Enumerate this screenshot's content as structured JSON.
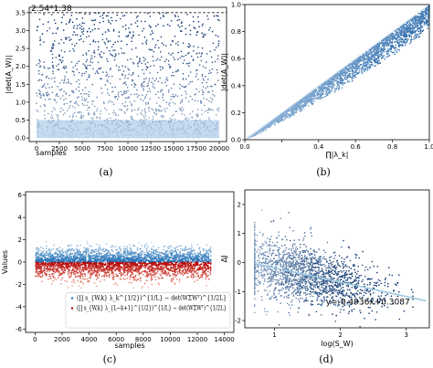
{
  "chart_data": [
    {
      "type": "scatter",
      "panel_label": "(a)",
      "xlabel": "samples",
      "ylabel": "|det(A_W)|",
      "xlim": [
        -800,
        20800
      ],
      "ylim": [
        -0.1,
        3.65
      ],
      "xticks": [
        0,
        2500,
        5000,
        7500,
        10000,
        12500,
        15000,
        17500,
        20000
      ],
      "xtick_labels": [
        "0",
        "2500",
        "5000",
        "7500",
        "10000",
        "12500",
        "15000",
        "17500",
        "20000"
      ],
      "yticks": [
        0.0,
        0.5,
        1.0,
        1.5,
        2.0,
        2.5,
        3.0,
        3.5
      ],
      "ytick_labels": [
        "0.0",
        "0.5",
        "1.0",
        "1.5",
        "2.0",
        "2.5",
        "3.0",
        "3.5"
      ],
      "bound_line": {
        "y": 3.5,
        "style": "dashed",
        "label": "2.54*1.38"
      },
      "point_density": {
        "n_samples": 20000,
        "y_range": [
          0,
          3.5
        ],
        "dense_below": 0.5
      },
      "colors": {
        "light": "#c6dbef",
        "dark": "#08306b"
      }
    },
    {
      "type": "scatter",
      "panel_label": "(b)",
      "xlabel": "∏|λ_k|",
      "ylabel": "|det(A_W)|",
      "xlim": [
        0,
        1.0
      ],
      "ylim": [
        0,
        1.0
      ],
      "xticks": [
        0.0,
        0.2,
        0.4,
        0.6,
        0.8,
        1.0
      ],
      "xtick_labels": [
        "0.0",
        "",
        "0.4",
        "0.6",
        "0.8",
        "1.0"
      ],
      "yticks": [
        0.0,
        0.2,
        0.4,
        0.6,
        0.8,
        1.0
      ],
      "ytick_labels": [
        "0.0",
        "0.2",
        "0.4",
        "0.6",
        "0.8",
        "1.0"
      ],
      "point_band": {
        "upper": "y = x",
        "lower_at_x1": 0.8
      },
      "colors": {
        "light": "#c6dbef",
        "dark": "#08519c"
      }
    },
    {
      "type": "scatter",
      "panel_label": "(c)",
      "xlabel": "samples",
      "ylabel": "Values",
      "xlim": [
        -700,
        14700
      ],
      "ylim": [
        -6.3,
        6.3
      ],
      "xticks": [
        0,
        2000,
        4000,
        6000,
        8000,
        10000,
        12000,
        14000
      ],
      "xtick_labels": [
        "0",
        "2000",
        "4000",
        "6000",
        "8000",
        "10000",
        "12000",
        "14000"
      ],
      "yticks": [
        -6,
        -4,
        -2,
        0,
        2,
        4,
        6
      ],
      "ytick_labels": [
        "-6",
        "-4",
        "-2",
        "0",
        "2",
        "4",
        "6"
      ],
      "series": [
        {
          "legend": "(∏ s_{W,k} λ_k^{1/2})^{1/L} − det(WΣWᵀ)^{1/2L}",
          "color": "#2171b5",
          "y_range": [
            0,
            1.9
          ]
        },
        {
          "legend": "(∏ s_{W,k} λ_{L−k+1}^{1/2})^{1/L} − det(WΣWᵀ)^{1/2L}",
          "color": "#b30000",
          "y_range": [
            -2.4,
            0
          ]
        }
      ]
    },
    {
      "type": "scatter",
      "panel_label": "(d)",
      "xlabel": "log(S_W)",
      "ylabel": "ΔJ",
      "xlim": [
        0.55,
        3.35
      ],
      "ylim": [
        -2.25,
        2.5
      ],
      "xticks": [
        1,
        2,
        3
      ],
      "xtick_labels": [
        "1",
        "2",
        "3"
      ],
      "yticks": [
        -2,
        -1,
        0,
        1,
        2
      ],
      "ytick_labels": [
        "-2",
        "-1",
        "0",
        "1",
        "2"
      ],
      "fit_line": {
        "slope": -0.4936,
        "intercept": 0.3087,
        "x_range": [
          0.7,
          3.3
        ],
        "label": "y=-0.4936x+0.3087"
      },
      "colors": {
        "light": "#c6dbef",
        "dark": "#08306b",
        "line": "#9ecae1"
      }
    }
  ]
}
